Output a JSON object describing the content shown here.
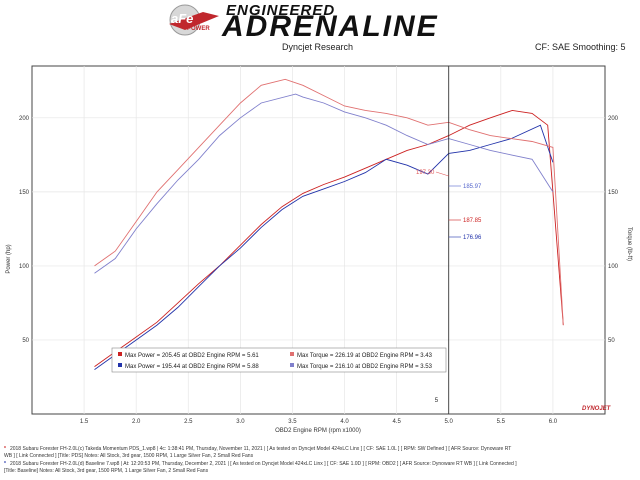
{
  "header": {
    "logo_text": "aFe",
    "logo_sub": "POWER",
    "brand_top": "ENGINEERED",
    "brand_main": "ADRENALINE",
    "left_caption": "Dyncjet Research",
    "right_caption": "CF: SAE Smoothing: 5"
  },
  "chart_data": {
    "type": "line",
    "xlabel": "OBD2 Engine RPM (rpm x1000)",
    "ylabel_left": "Power (hp)",
    "ylabel_right": "Torque (lb-ft)",
    "xlim": [
      1.0,
      6.5
    ],
    "ylim": [
      0,
      235
    ],
    "x_ticks": [
      "1.5",
      "2.0",
      "2.5",
      "3.0",
      "3.5",
      "4.0",
      "4.5",
      "5.0",
      "5.5",
      "6.0"
    ],
    "y_ticks_left": [
      "50",
      "100",
      "150",
      "200"
    ],
    "y_ticks_right": [
      "50",
      "100",
      "150",
      "200"
    ],
    "x_tick_values": [
      1.5,
      2.0,
      2.5,
      3.0,
      3.5,
      4.0,
      4.5,
      5.0,
      5.5,
      6.0
    ],
    "y_tick_values": [
      50,
      100,
      150,
      200
    ],
    "grid": true,
    "cursor": {
      "x": 5.0,
      "label": "5"
    },
    "watermark": "DYNOJET",
    "series": [
      {
        "name": "Max Power = 205.45 at OBD2 Engine RPM = 5.61",
        "color": "#cc2222",
        "x": [
          1.6,
          1.8,
          2.0,
          2.2,
          2.4,
          2.6,
          2.8,
          3.0,
          3.2,
          3.4,
          3.6,
          3.8,
          4.0,
          4.2,
          4.4,
          4.6,
          4.8,
          5.0,
          5.2,
          5.4,
          5.61,
          5.8,
          5.95,
          6.1
        ],
        "y": [
          32,
          42,
          52,
          62,
          75,
          88,
          100,
          114,
          128,
          140,
          149,
          155,
          160,
          166,
          172,
          178,
          182,
          188,
          195,
          200,
          205,
          203,
          195,
          60
        ]
      },
      {
        "name": "Max Power = 195.44 at OBD2 Engine RPM = 5.88",
        "color": "#2233aa",
        "x": [
          1.6,
          1.8,
          2.0,
          2.2,
          2.4,
          2.6,
          2.8,
          3.0,
          3.2,
          3.4,
          3.6,
          3.8,
          4.0,
          4.2,
          4.4,
          4.6,
          4.8,
          5.0,
          5.2,
          5.4,
          5.6,
          5.88,
          6.0
        ],
        "y": [
          30,
          40,
          50,
          60,
          72,
          86,
          100,
          112,
          126,
          138,
          147,
          152,
          157,
          163,
          172,
          168,
          162,
          176,
          178,
          182,
          186,
          195,
          170
        ]
      },
      {
        "name": "Max Torque = 226.19 at OBD2 Engine RPM = 3.43",
        "color": "#e07070",
        "x": [
          1.6,
          1.8,
          2.0,
          2.2,
          2.4,
          2.6,
          2.8,
          3.0,
          3.2,
          3.43,
          3.6,
          3.8,
          4.0,
          4.2,
          4.4,
          4.6,
          4.8,
          5.0,
          5.2,
          5.4,
          5.6,
          5.8,
          6.0,
          6.1
        ],
        "y": [
          100,
          110,
          130,
          150,
          165,
          180,
          195,
          210,
          222,
          226,
          222,
          215,
          208,
          205,
          203,
          200,
          195,
          197,
          192,
          188,
          186,
          184,
          180,
          60
        ]
      },
      {
        "name": "Max Torque = 216.10 at OBD2 Engine RPM = 3.53",
        "color": "#8080cc",
        "x": [
          1.6,
          1.8,
          2.0,
          2.2,
          2.4,
          2.6,
          2.8,
          3.0,
          3.2,
          3.53,
          3.6,
          3.8,
          4.0,
          4.2,
          4.4,
          4.6,
          4.8,
          5.0,
          5.2,
          5.4,
          5.6,
          5.8,
          6.0
        ],
        "y": [
          95,
          105,
          125,
          142,
          158,
          172,
          188,
          200,
          210,
          216,
          214,
          210,
          204,
          200,
          195,
          188,
          182,
          186,
          182,
          178,
          175,
          172,
          150
        ]
      }
    ],
    "annotations": [
      {
        "text": "197.30",
        "color": "#e05555"
      },
      {
        "text": "185.97",
        "color": "#5566cc"
      },
      {
        "text": "187.85",
        "color": "#cc2222"
      },
      {
        "text": "176.96",
        "color": "#2233aa"
      }
    ],
    "legend": {
      "placement": "bottom-left"
    }
  },
  "footer": {
    "line1": "2018 Subaru Forester FH-2.0L(c) Takeda Momentum PDS_1.wp8 | 4c: 1:38:41 PM, Thursday, November 11, 2021 | [ As tested on Dyncjet Model 424xLC Linx ] [ CF: SAE 1.0L ] [ RPM: SW Defined ] [ AFR Source: Dynoware RT",
    "line2": "WB ] [ Link Connected ] [Title: PDS] Notes: All Stock, 3rd gear, 1500 RPM, 1 Large Silver Fan, 2 Small Red Fans",
    "line3": "2018 Subaru Forester FH-2.0L(d) Baseline 7.wp8 | At: 12:20:53 PM, Thursday, December 2, 2021 | [ As tested on Dyncjet Model 424xLC Linx ] [ CF: SAE 1.0D ] [ RPM: OBD2 ] [ AFR Source: Dynoware RT WB ] [ Link Connected ]",
    "line4": "[Title: Baseline] Notes: All Stock, 3rd gear, 1500 RPM, 1 Large Silver Fan, 2 Small Red Fans",
    "mark1": "*",
    "mark2": "*"
  }
}
